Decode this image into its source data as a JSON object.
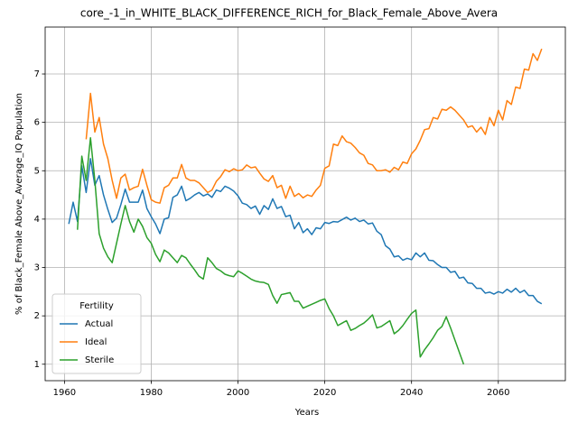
{
  "chart_data": {
    "type": "line",
    "title": "core_-1_in_WHITE_BLACK_DIFFERENCE_RICH_for_Black_Female_Above_Avera",
    "x_label": "Years",
    "y_label": "% of Black_Female Above_Average_IQ Population",
    "x": [
      1961,
      1962,
      1963,
      1964,
      1965,
      1966,
      1967,
      1968,
      1969,
      1970,
      1971,
      1972,
      1973,
      1974,
      1975,
      1976,
      1977,
      1978,
      1979,
      1980,
      1981,
      1982,
      1983,
      1984,
      1985,
      1986,
      1987,
      1988,
      1989,
      1990,
      1991,
      1992,
      1993,
      1994,
      1995,
      1996,
      1997,
      1998,
      1999,
      2000,
      2001,
      2002,
      2003,
      2004,
      2005,
      2006,
      2007,
      2008,
      2009,
      2010,
      2011,
      2012,
      2013,
      2014,
      2015,
      2016,
      2017,
      2018,
      2019,
      2020,
      2021,
      2022,
      2023,
      2024,
      2025,
      2026,
      2027,
      2028,
      2029,
      2030,
      2031,
      2032,
      2033,
      2034,
      2035,
      2036,
      2037,
      2038,
      2039,
      2040,
      2041,
      2042,
      2043,
      2044,
      2045,
      2046,
      2047,
      2048,
      2049,
      2050,
      2051,
      2052,
      2053,
      2054,
      2055,
      2056,
      2057,
      2058,
      2059,
      2060,
      2061,
      2062,
      2063,
      2064,
      2065,
      2066,
      2067,
      2068,
      2069,
      2070
    ],
    "series": [
      {
        "name": "Actual",
        "color": "#1f77b4",
        "values": [
          3.9,
          4.35,
          3.95,
          5.1,
          4.55,
          5.25,
          4.7,
          4.9,
          4.5,
          4.2,
          3.93,
          4.02,
          4.3,
          4.62,
          4.35,
          4.35,
          4.35,
          4.6,
          4.22,
          4.05,
          3.9,
          3.7,
          4.0,
          4.03,
          4.45,
          4.5,
          4.68,
          4.38,
          4.43,
          4.5,
          4.55,
          4.48,
          4.52,
          4.45,
          4.6,
          4.57,
          4.68,
          4.64,
          4.58,
          4.48,
          4.33,
          4.3,
          4.22,
          4.27,
          4.1,
          4.28,
          4.2,
          4.42,
          4.22,
          4.26,
          4.05,
          4.08,
          3.8,
          3.93,
          3.72,
          3.8,
          3.68,
          3.82,
          3.8,
          3.93,
          3.91,
          3.95,
          3.94,
          3.99,
          4.04,
          3.98,
          4.02,
          3.95,
          3.98,
          3.9,
          3.92,
          3.75,
          3.68,
          3.45,
          3.38,
          3.22,
          3.24,
          3.15,
          3.19,
          3.16,
          3.3,
          3.22,
          3.3,
          3.15,
          3.14,
          3.06,
          3.0,
          3.0,
          2.9,
          2.92,
          2.78,
          2.8,
          2.68,
          2.67,
          2.57,
          2.57,
          2.47,
          2.49,
          2.45,
          2.5,
          2.47,
          2.55,
          2.49,
          2.57,
          2.48,
          2.53,
          2.42,
          2.42,
          2.3,
          2.25
        ]
      },
      {
        "name": "Ideal",
        "color": "#ff7f0e",
        "values": [
          null,
          null,
          null,
          null,
          5.65,
          6.6,
          5.8,
          6.1,
          5.55,
          5.25,
          4.8,
          4.43,
          4.85,
          4.93,
          4.6,
          4.65,
          4.68,
          5.03,
          4.7,
          4.4,
          4.35,
          4.33,
          4.65,
          4.7,
          4.85,
          4.85,
          5.13,
          4.85,
          4.8,
          4.8,
          4.75,
          4.65,
          4.55,
          4.6,
          4.78,
          4.88,
          5.02,
          4.98,
          5.04,
          5.0,
          5.02,
          5.12,
          5.06,
          5.08,
          4.95,
          4.83,
          4.78,
          4.9,
          4.65,
          4.7,
          4.43,
          4.68,
          4.47,
          4.53,
          4.44,
          4.5,
          4.47,
          4.6,
          4.7,
          5.05,
          5.1,
          5.55,
          5.52,
          5.72,
          5.6,
          5.57,
          5.48,
          5.37,
          5.32,
          5.15,
          5.12,
          5.0,
          5.0,
          5.02,
          4.97,
          5.07,
          5.02,
          5.18,
          5.15,
          5.35,
          5.45,
          5.63,
          5.85,
          5.87,
          6.1,
          6.07,
          6.27,
          6.25,
          6.32,
          6.25,
          6.15,
          6.05,
          5.9,
          5.93,
          5.8,
          5.9,
          5.75,
          6.1,
          5.93,
          6.25,
          6.05,
          6.45,
          6.37,
          6.73,
          6.7,
          7.1,
          7.08,
          7.42,
          7.28,
          7.52
        ]
      },
      {
        "name": "Sterile",
        "color": "#2ca02c",
        "values": [
          null,
          null,
          3.78,
          5.3,
          4.8,
          5.68,
          4.8,
          3.7,
          3.4,
          3.22,
          3.1,
          3.5,
          3.9,
          4.28,
          3.95,
          3.73,
          4.0,
          3.85,
          3.62,
          3.5,
          3.27,
          3.12,
          3.36,
          3.3,
          3.2,
          3.1,
          3.25,
          3.2,
          3.07,
          2.95,
          2.82,
          2.76,
          3.2,
          3.1,
          2.98,
          2.93,
          2.86,
          2.83,
          2.81,
          2.93,
          2.88,
          2.82,
          2.76,
          2.72,
          2.7,
          2.69,
          2.65,
          2.42,
          2.26,
          2.44,
          2.46,
          2.48,
          2.3,
          2.3,
          2.16,
          2.2,
          2.24,
          2.28,
          2.32,
          2.35,
          2.15,
          2.0,
          1.8,
          1.85,
          1.9,
          1.7,
          1.74,
          1.8,
          1.85,
          1.93,
          2.02,
          1.75,
          1.78,
          1.84,
          1.9,
          1.63,
          1.7,
          1.8,
          1.93,
          2.05,
          2.12,
          1.15,
          1.3,
          1.42,
          1.55,
          1.7,
          1.78,
          1.98,
          1.75,
          1.5,
          1.25,
          1.0,
          null,
          null,
          null,
          null,
          null,
          null,
          null,
          null,
          null,
          null,
          null,
          null,
          null,
          null,
          null,
          null,
          null,
          null
        ]
      }
    ],
    "xlim": [
      1955.55,
      2075.45
    ],
    "xticks": [
      1960,
      1980,
      2000,
      2020,
      2040,
      2060
    ],
    "ylim": [
      0.66,
      7.97
    ],
    "yticks": [
      1,
      2,
      3,
      4,
      5,
      6,
      7
    ],
    "grid": true,
    "legend_title": "Fertility",
    "legend_position": "lower left"
  }
}
